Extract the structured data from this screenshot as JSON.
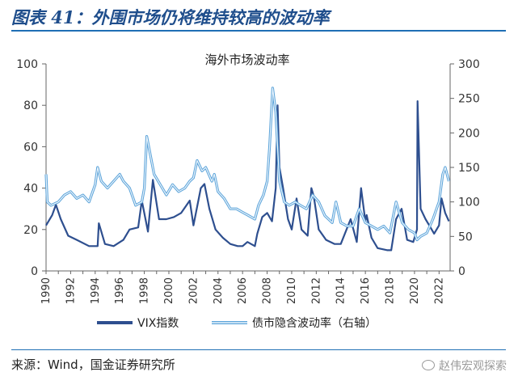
{
  "figure": {
    "title": "图表 41：外围市场仍将维持较高的波动率",
    "source": "来源：Wind，国金证券研究所",
    "watermark": "赵伟宏观探索"
  },
  "colors": {
    "vix": "#2e4f8f",
    "bond": "#5ba3d9",
    "title": "#1f4e8c",
    "rule": "#1f6fb5"
  },
  "chart_data": {
    "type": "line",
    "title": "海外市场波动率",
    "x_tick_labels": [
      "1990",
      "1992",
      "1994",
      "1996",
      "1998",
      "2000",
      "2002",
      "2004",
      "2006",
      "2008",
      "2010",
      "2012",
      "2014",
      "2016",
      "2018",
      "2020",
      "2022"
    ],
    "xlim": [
      1990,
      2022.9
    ],
    "y_left": {
      "ylim": [
        0,
        100
      ],
      "ticks": [
        0,
        20,
        40,
        60,
        80,
        100
      ]
    },
    "y_right": {
      "ylim": [
        0,
        300
      ],
      "ticks": [
        0,
        50,
        100,
        150,
        200,
        250,
        300
      ]
    },
    "grid": false,
    "legend_position": "bottom",
    "series": [
      {
        "name": "VIX指数",
        "axis": "left",
        "x": [
          1990,
          1990.5,
          1990.8,
          1991.2,
          1991.8,
          1992.5,
          1993.5,
          1994.2,
          1994.3,
          1994.8,
          1995.5,
          1996.3,
          1996.8,
          1997.5,
          1997.8,
          1998.3,
          1998.7,
          1999.2,
          1999.8,
          2000.4,
          2001.0,
          2001.7,
          2002.0,
          2002.6,
          2002.9,
          2003.3,
          2003.8,
          2004.4,
          2005.0,
          2005.6,
          2006.0,
          2006.4,
          2007.0,
          2007.2,
          2007.6,
          2008.0,
          2008.4,
          2008.7,
          2008.85,
          2009.0,
          2009.3,
          2009.7,
          2010.0,
          2010.4,
          2010.8,
          2011.3,
          2011.6,
          2011.8,
          2012.2,
          2012.8,
          2013.5,
          2014.0,
          2014.8,
          2015.3,
          2015.65,
          2016.0,
          2016.1,
          2016.5,
          2017.0,
          2017.8,
          2018.1,
          2018.5,
          2018.95,
          2019.4,
          2019.9,
          2020.2,
          2020.25,
          2020.5,
          2020.9,
          2021.2,
          2021.6,
          2022.0,
          2022.2,
          2022.5,
          2022.8
        ],
        "y": [
          22,
          27,
          32,
          25,
          17,
          15,
          12,
          12,
          23,
          13,
          12,
          15,
          20,
          21,
          34,
          19,
          44,
          25,
          25,
          26,
          28,
          34,
          22,
          40,
          42,
          30,
          20,
          16,
          13,
          12,
          12,
          14,
          12,
          18,
          26,
          28,
          24,
          40,
          80,
          50,
          40,
          25,
          20,
          35,
          20,
          17,
          40,
          36,
          20,
          15,
          13,
          13,
          25,
          14,
          40,
          24,
          27,
          16,
          11,
          10,
          10,
          25,
          30,
          15,
          14,
          20,
          82,
          30,
          25,
          22,
          18,
          22,
          35,
          28,
          24
        ]
      },
      {
        "name": "债市隐含波动率（右轴）",
        "axis": "right",
        "x": [
          1990,
          1990.1,
          1990.4,
          1991.0,
          1991.5,
          1992.0,
          1992.5,
          1993.0,
          1993.5,
          1994.0,
          1994.2,
          1994.5,
          1995.0,
          1995.5,
          1996.0,
          1996.3,
          1996.8,
          1997.3,
          1997.8,
          1998.0,
          1998.2,
          1998.8,
          1999.3,
          1999.8,
          2000.3,
          2000.8,
          2001.3,
          2001.7,
          2002.0,
          2002.3,
          2002.7,
          2003.0,
          2003.5,
          2003.7,
          2004.0,
          2004.5,
          2005.0,
          2005.5,
          2006.0,
          2006.5,
          2007.0,
          2007.3,
          2007.7,
          2008.0,
          2008.2,
          2008.45,
          2008.7,
          2009.0,
          2009.4,
          2009.8,
          2010.3,
          2010.7,
          2011.2,
          2011.7,
          2012.2,
          2012.7,
          2013.3,
          2013.6,
          2014.0,
          2014.5,
          2015.0,
          2015.5,
          2016.0,
          2016.5,
          2017.0,
          2017.5,
          2018.0,
          2018.5,
          2019.0,
          2019.5,
          2020.0,
          2020.2,
          2020.5,
          2021.0,
          2021.5,
          2022.0,
          2022.3,
          2022.5,
          2022.8
        ],
        "y": [
          140,
          100,
          95,
          100,
          110,
          115,
          105,
          110,
          100,
          125,
          150,
          130,
          120,
          130,
          140,
          130,
          120,
          95,
          100,
          120,
          195,
          140,
          125,
          110,
          125,
          115,
          120,
          130,
          135,
          160,
          145,
          150,
          130,
          140,
          115,
          105,
          90,
          90,
          85,
          80,
          75,
          95,
          110,
          130,
          180,
          265,
          230,
          130,
          100,
          95,
          100,
          95,
          90,
          110,
          100,
          80,
          70,
          100,
          70,
          65,
          65,
          90,
          70,
          65,
          60,
          65,
          55,
          100,
          70,
          60,
          55,
          45,
          50,
          55,
          75,
          100,
          140,
          150,
          130
        ]
      }
    ]
  }
}
